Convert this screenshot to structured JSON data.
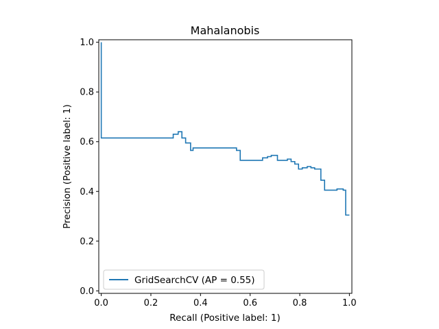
{
  "chart_data": {
    "type": "line",
    "drawstyle": "steps-post",
    "title": "Mahalanobis",
    "xlabel": "Recall (Positive label: 1)",
    "ylabel": "Precision (Positive label: 1)",
    "xlim": [
      -0.01,
      1.01
    ],
    "ylim": [
      -0.01,
      1.01
    ],
    "xticks": [
      0.0,
      0.2,
      0.4,
      0.6,
      0.8,
      1.0
    ],
    "yticks": [
      0.0,
      0.2,
      0.4,
      0.6,
      0.8,
      1.0
    ],
    "xtick_labels": [
      "0.0",
      "0.2",
      "0.4",
      "0.6",
      "0.8",
      "1.0"
    ],
    "ytick_labels": [
      "0.0",
      "0.2",
      "0.4",
      "0.6",
      "0.8",
      "1.0"
    ],
    "grid": false,
    "legend_position": "lower-left",
    "series": [
      {
        "name": "GridSearchCV (AP = 0.55)",
        "color": "#1f77b4",
        "x": [
          0.0,
          0.0,
          0.29,
          0.31,
          0.325,
          0.34,
          0.36,
          0.37,
          0.4,
          0.545,
          0.56,
          0.565,
          0.65,
          0.67,
          0.685,
          0.71,
          0.75,
          0.765,
          0.78,
          0.795,
          0.81,
          0.83,
          0.845,
          0.86,
          0.885,
          0.9,
          0.92,
          0.935,
          0.95,
          0.975,
          0.985,
          1.0
        ],
        "y": [
          1.0,
          0.615,
          0.63,
          0.64,
          0.615,
          0.595,
          0.565,
          0.575,
          0.575,
          0.565,
          0.525,
          0.525,
          0.535,
          0.54,
          0.545,
          0.525,
          0.53,
          0.52,
          0.51,
          0.49,
          0.495,
          0.5,
          0.495,
          0.49,
          0.445,
          0.405,
          0.405,
          0.405,
          0.41,
          0.405,
          0.305,
          0.305
        ]
      }
    ]
  }
}
